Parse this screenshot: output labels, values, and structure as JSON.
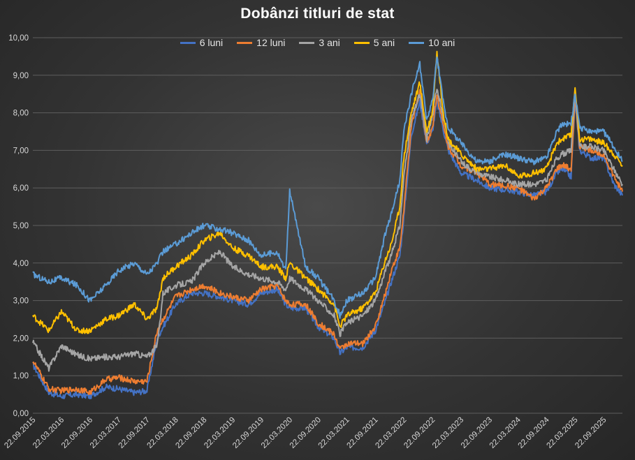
{
  "chart_data": {
    "type": "line",
    "title": "Dobânzi titluri de stat",
    "xlabel": "",
    "ylabel": "",
    "ylim": [
      0,
      10
    ],
    "y_ticks": [
      "0,00",
      "1,00",
      "2,00",
      "3,00",
      "4,00",
      "5,00",
      "6,00",
      "7,00",
      "8,00",
      "9,00",
      "10,00"
    ],
    "x_ticks": [
      "22.09.2015",
      "22.03.2016",
      "22.09.2016",
      "22.03.2017",
      "22.09.2017",
      "22.03.2018",
      "22.09.2018",
      "22.03.2019",
      "22.09.2019",
      "22.03.2020",
      "22.09.2020",
      "22.03.2021",
      "22.09.2021",
      "22.03.2022",
      "22.09.2022",
      "22.03.2023",
      "22.09.2023",
      "22.03.2024",
      "22.09.2024",
      "22.03.2025",
      "22.09.2025"
    ],
    "grid": true,
    "legend_position": "top",
    "x": [
      2015.72,
      2016.0,
      2016.22,
      2016.5,
      2016.72,
      2017.0,
      2017.22,
      2017.5,
      2017.72,
      2017.9,
      2018.0,
      2018.22,
      2018.5,
      2018.72,
      2019.0,
      2019.22,
      2019.5,
      2019.72,
      2020.0,
      2020.15,
      2020.22,
      2020.5,
      2020.72,
      2021.0,
      2021.1,
      2021.22,
      2021.5,
      2021.72,
      2021.9,
      2022.0,
      2022.15,
      2022.22,
      2022.35,
      2022.5,
      2022.62,
      2022.72,
      2022.8,
      2022.92,
      2023.0,
      2023.22,
      2023.5,
      2023.72,
      2024.0,
      2024.22,
      2024.5,
      2024.72,
      2024.9,
      2025.0,
      2025.15,
      2025.22,
      2025.3,
      2025.5,
      2025.72,
      2025.9,
      2026.05
    ],
    "series": [
      {
        "name": "6 luni",
        "color": "#4472c4",
        "values": [
          1.3,
          0.55,
          0.45,
          0.5,
          0.45,
          0.7,
          0.65,
          0.55,
          0.6,
          2.0,
          2.3,
          2.9,
          3.2,
          3.2,
          3.1,
          3.0,
          2.9,
          3.2,
          3.3,
          2.9,
          2.8,
          2.8,
          2.3,
          2.0,
          1.6,
          1.75,
          1.75,
          2.2,
          3.0,
          3.5,
          4.2,
          5.2,
          7.4,
          8.3,
          7.2,
          7.5,
          8.3,
          7.5,
          7.0,
          6.4,
          6.2,
          6.0,
          5.95,
          5.9,
          5.8,
          5.9,
          6.4,
          6.5,
          6.3,
          8.3,
          7.0,
          6.8,
          6.8,
          6.1,
          5.8
        ]
      },
      {
        "name": "12 luni",
        "color": "#ed7d31",
        "values": [
          1.4,
          0.65,
          0.6,
          0.65,
          0.55,
          0.9,
          0.95,
          0.85,
          0.85,
          2.2,
          2.5,
          3.1,
          3.3,
          3.4,
          3.2,
          3.1,
          3.0,
          3.3,
          3.4,
          3.0,
          2.9,
          2.9,
          2.4,
          2.1,
          1.7,
          1.85,
          1.85,
          2.3,
          3.2,
          3.8,
          4.4,
          5.4,
          7.6,
          8.6,
          7.2,
          7.6,
          8.5,
          7.6,
          7.1,
          6.6,
          6.4,
          6.1,
          6.05,
          6.0,
          5.7,
          6.0,
          6.5,
          6.6,
          6.5,
          8.4,
          7.1,
          7.0,
          6.9,
          6.3,
          5.9
        ]
      },
      {
        "name": "3 ani",
        "color": "#a5a5a5",
        "values": [
          1.9,
          1.2,
          1.8,
          1.55,
          1.45,
          1.5,
          1.5,
          1.6,
          1.5,
          1.8,
          3.2,
          3.4,
          3.5,
          4.0,
          4.3,
          3.9,
          3.7,
          3.6,
          3.5,
          3.3,
          3.6,
          3.3,
          3.0,
          2.6,
          2.1,
          2.4,
          2.6,
          3.0,
          3.8,
          4.2,
          5.0,
          6.3,
          7.8,
          8.5,
          7.3,
          7.9,
          8.7,
          7.8,
          7.2,
          6.7,
          6.4,
          6.3,
          6.2,
          6.1,
          6.1,
          6.2,
          6.8,
          6.9,
          7.0,
          8.6,
          7.1,
          7.1,
          7.0,
          6.5,
          6.1
        ]
      },
      {
        "name": "5 ani",
        "color": "#ffc000",
        "values": [
          2.6,
          2.2,
          2.7,
          2.2,
          2.2,
          2.5,
          2.6,
          2.9,
          2.5,
          2.8,
          3.6,
          3.9,
          4.2,
          4.6,
          4.8,
          4.4,
          4.2,
          3.9,
          3.9,
          3.6,
          4.0,
          3.6,
          3.3,
          2.9,
          2.3,
          2.6,
          2.8,
          3.2,
          4.1,
          4.5,
          5.5,
          6.8,
          8.0,
          8.8,
          7.5,
          8.0,
          9.6,
          7.9,
          7.3,
          6.9,
          6.5,
          6.5,
          6.6,
          6.3,
          6.4,
          6.5,
          7.2,
          7.3,
          7.4,
          8.7,
          7.3,
          7.3,
          7.2,
          6.9,
          6.6
        ]
      },
      {
        "name": "10 ani",
        "color": "#5b9bd5",
        "values": [
          3.7,
          3.5,
          3.6,
          3.4,
          3.0,
          3.4,
          3.8,
          4.0,
          3.7,
          4.0,
          4.3,
          4.5,
          4.8,
          5.0,
          4.9,
          4.8,
          4.6,
          4.2,
          4.3,
          3.8,
          5.9,
          3.9,
          3.6,
          3.0,
          2.6,
          3.0,
          3.2,
          3.6,
          4.8,
          5.3,
          6.2,
          7.5,
          8.5,
          9.3,
          7.8,
          8.3,
          9.5,
          8.2,
          7.6,
          7.2,
          6.7,
          6.7,
          6.9,
          6.8,
          6.7,
          6.8,
          7.5,
          7.7,
          7.7,
          8.5,
          7.6,
          7.5,
          7.5,
          7.1,
          6.7
        ]
      }
    ]
  }
}
